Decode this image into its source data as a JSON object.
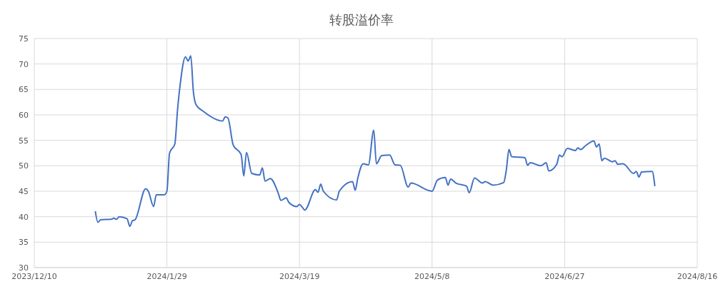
{
  "chart_data": {
    "type": "line",
    "title": "转股溢价率",
    "x": [
      "2024-01-02",
      "2024-01-03",
      "2024-01-04",
      "2024-01-08",
      "2024-01-09",
      "2024-01-10",
      "2024-01-11",
      "2024-01-14",
      "2024-01-15",
      "2024-01-16",
      "2024-01-17",
      "2024-01-21",
      "2024-01-22",
      "2024-01-24",
      "2024-01-25",
      "2024-01-28",
      "2024-01-29",
      "2024-01-30",
      "2024-02-01",
      "2024-02-02",
      "2024-02-03",
      "2024-02-05",
      "2024-02-06",
      "2024-02-07",
      "2024-02-08",
      "2024-02-09",
      "2024-02-12",
      "2024-02-19",
      "2024-02-20",
      "2024-02-21",
      "2024-02-23",
      "2024-02-26",
      "2024-02-27",
      "2024-02-28",
      "2024-03-01",
      "2024-03-04",
      "2024-03-05",
      "2024-03-06",
      "2024-03-08",
      "2024-03-11",
      "2024-03-12",
      "2024-03-14",
      "2024-03-15",
      "2024-03-18",
      "2024-03-19",
      "2024-03-20",
      "2024-03-21",
      "2024-03-25",
      "2024-03-26",
      "2024-03-27",
      "2024-03-28",
      "2024-04-02",
      "2024-04-03",
      "2024-04-08",
      "2024-04-09",
      "2024-04-10",
      "2024-04-12",
      "2024-04-14",
      "2024-04-16",
      "2024-04-17",
      "2024-04-19",
      "2024-04-22",
      "2024-04-24",
      "2024-04-26",
      "2024-04-29",
      "2024-04-30",
      "2024-05-07",
      "2024-05-08",
      "2024-05-10",
      "2024-05-13",
      "2024-05-14",
      "2024-05-15",
      "2024-05-17",
      "2024-05-21",
      "2024-05-22",
      "2024-05-24",
      "2024-05-27",
      "2024-05-28",
      "2024-05-31",
      "2024-06-04",
      "2024-06-05",
      "2024-06-06",
      "2024-06-07",
      "2024-06-12",
      "2024-06-13",
      "2024-06-14",
      "2024-06-18",
      "2024-06-20",
      "2024-06-21",
      "2024-06-24",
      "2024-06-25",
      "2024-06-26",
      "2024-06-28",
      "2024-07-01",
      "2024-07-02",
      "2024-07-03",
      "2024-07-05",
      "2024-07-08",
      "2024-07-09",
      "2024-07-10",
      "2024-07-11",
      "2024-07-12",
      "2024-07-15",
      "2024-07-16",
      "2024-07-17",
      "2024-07-19",
      "2024-07-23",
      "2024-07-24",
      "2024-07-25",
      "2024-07-26",
      "2024-07-30",
      "2024-07-31"
    ],
    "series": [
      {
        "color": "#4472c4",
        "values": [
          41.1,
          38.9,
          39.4,
          39.5,
          39.7,
          39.5,
          40.0,
          39.6,
          38.1,
          39.2,
          39.4,
          45.5,
          45.0,
          42.0,
          44.3,
          44.3,
          45.0,
          52.5,
          54.3,
          60.9,
          65.9,
          71.4,
          70.6,
          71.6,
          64.5,
          62.0,
          60.6,
          58.8,
          59.6,
          59.4,
          54.1,
          52.2,
          48.0,
          52.6,
          48.5,
          48.2,
          49.6,
          47.0,
          47.5,
          44.6,
          43.2,
          43.7,
          42.8,
          42.0,
          42.4,
          41.9,
          41.3,
          45.3,
          44.8,
          46.4,
          45.0,
          43.3,
          45.0,
          46.9,
          45.2,
          47.6,
          50.4,
          50.2,
          57.0,
          50.4,
          52.0,
          52.1,
          50.2,
          50.1,
          45.8,
          46.6,
          45.1,
          45.0,
          47.2,
          47.7,
          46.2,
          47.4,
          46.6,
          46.0,
          44.7,
          47.6,
          46.6,
          46.9,
          46.2,
          46.7,
          49.2,
          53.2,
          51.8,
          51.6,
          50.1,
          50.6,
          50.0,
          50.6,
          49.0,
          50.3,
          52.1,
          51.8,
          53.4,
          53.0,
          53.5,
          53.2,
          54.0,
          54.9,
          53.7,
          54.3,
          51.0,
          51.5,
          50.8,
          51.0,
          50.3,
          50.4,
          48.5,
          48.9,
          47.8,
          48.8,
          48.9,
          46.0
        ]
      }
    ],
    "xlim": [
      "2023-12-10",
      "2024-08-16"
    ],
    "xticks": [
      {
        "value": "2023-12-10",
        "label": "2023/12/10"
      },
      {
        "value": "2024-01-29",
        "label": "2024/1/29"
      },
      {
        "value": "2024-03-19",
        "label": "2024/3/19"
      },
      {
        "value": "2024-05-08",
        "label": "2024/5/8"
      },
      {
        "value": "2024-06-27",
        "label": "2024/6/27"
      },
      {
        "value": "2024-08-16",
        "label": "2024/8/16"
      }
    ],
    "ylim": [
      30,
      75
    ],
    "yticks": [
      30,
      35,
      40,
      45,
      50,
      55,
      60,
      65,
      70,
      75
    ],
    "grid": true,
    "marker": "none",
    "line_style": "solid"
  }
}
